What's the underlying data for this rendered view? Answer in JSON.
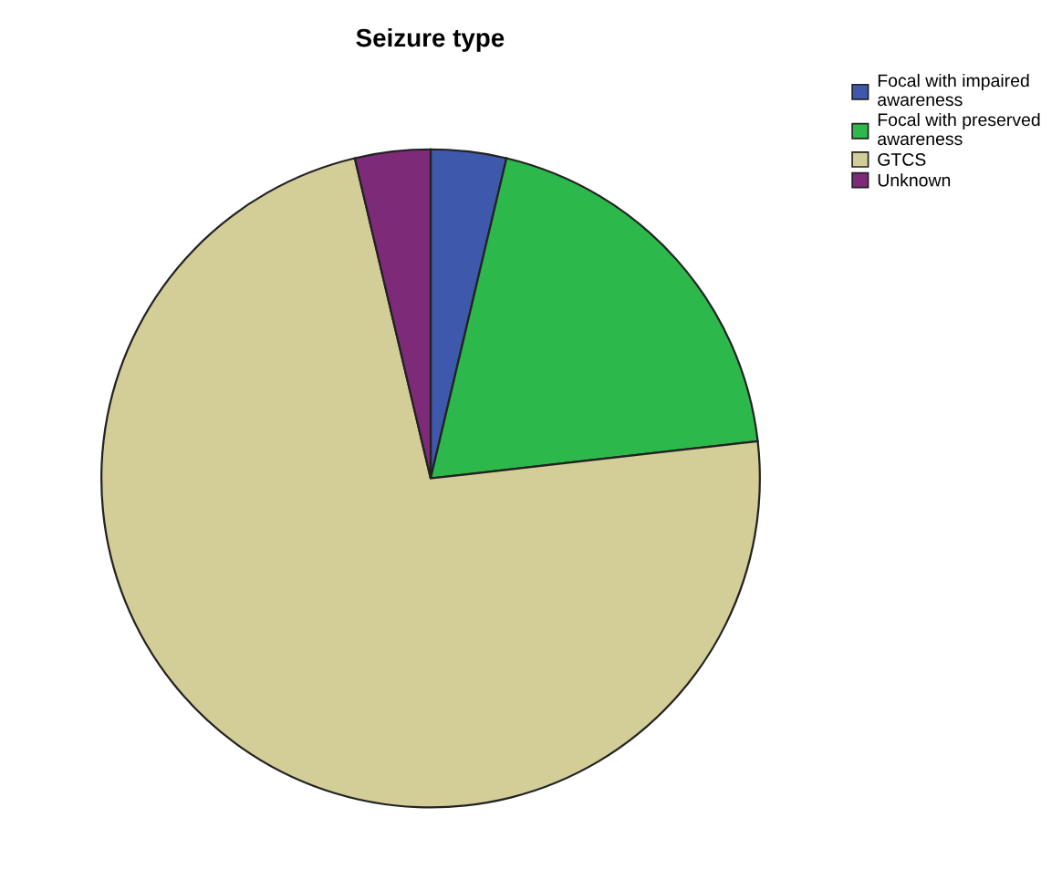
{
  "chart_data": {
    "type": "pie",
    "title": "Seizure type",
    "categories": [
      "Focal with impaired\nawareness",
      "Focal with preserved\nawareness",
      "GTCS",
      "Unknown"
    ],
    "values": [
      3.7,
      19.5,
      73.1,
      3.7
    ],
    "colors": [
      "#3e58ac",
      "#2db84b",
      "#d3ce97",
      "#7d2a79"
    ],
    "legend": "top right"
  }
}
